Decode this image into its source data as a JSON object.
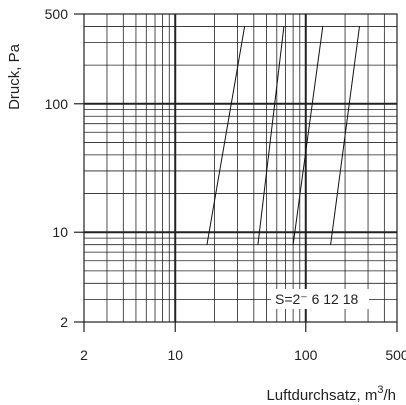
{
  "chart_data": {
    "type": "line",
    "xlabel": "Luftdurchsatz, m³/h",
    "ylabel": "Druck, Pa",
    "x_scale": "log",
    "y_scale": "log",
    "xlim": [
      2,
      500
    ],
    "ylim": [
      2,
      500
    ],
    "x_ticks": [
      2,
      10,
      100,
      500
    ],
    "x_tick_labels": [
      "2",
      "10",
      "100",
      "500"
    ],
    "y_ticks": [
      2,
      10,
      100,
      500
    ],
    "y_tick_labels": [
      "2",
      "10",
      "100",
      "500"
    ],
    "grid": true,
    "annotation": "S=2⁻ 6 12 18",
    "series": [
      {
        "x": [
          17.5,
          34
        ],
        "y": [
          8,
          400
        ]
      },
      {
        "x": [
          43,
          68
        ],
        "y": [
          8,
          400
        ]
      },
      {
        "x": [
          80,
          135
        ],
        "y": [
          8,
          400
        ]
      },
      {
        "x": [
          155,
          258
        ],
        "y": [
          8,
          400
        ]
      }
    ]
  }
}
